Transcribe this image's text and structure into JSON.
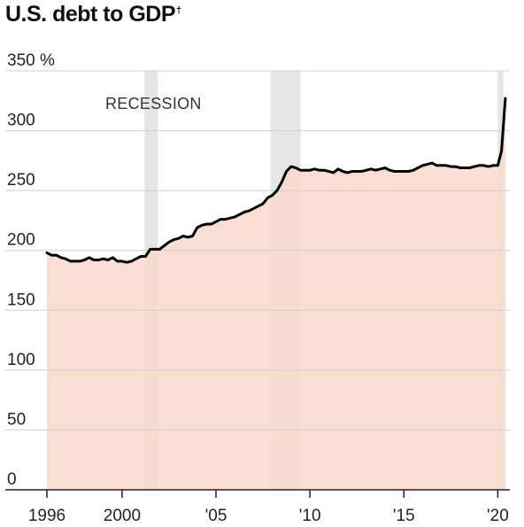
{
  "title": "U.S. debt to GDP",
  "title_mark": "†",
  "chart_data": {
    "type": "area",
    "title": "U.S. debt to GDP",
    "xlabel": "",
    "ylabel": "",
    "xlim": [
      1996,
      2020.5
    ],
    "ylim": [
      0,
      350
    ],
    "y_ticks": [
      0,
      50,
      100,
      150,
      200,
      250,
      300,
      350
    ],
    "y_tick_labels": [
      "0",
      "50",
      "100",
      "150",
      "200",
      "250",
      "300",
      "350 %"
    ],
    "x_ticks": [
      1996,
      2000,
      2005,
      2010,
      2015,
      2020
    ],
    "x_tick_labels": [
      "1996",
      "2000",
      "'05",
      "'10",
      "'15",
      "'20"
    ],
    "grid": true,
    "line_color": "#000000",
    "fill_color": "#f9d8cd",
    "recession_color": "#dcdcdc",
    "recession_label": "RECESSION",
    "recessions": [
      [
        2001.2,
        2001.9
      ],
      [
        2007.9,
        2009.5
      ],
      [
        2020.0,
        2020.3
      ]
    ],
    "series": [
      {
        "x": [
          1996.0,
          1996.25,
          1996.5,
          1996.75,
          1997.0,
          1997.25,
          1997.5,
          1997.75,
          1998.0,
          1998.25,
          1998.5,
          1998.75,
          1999.0,
          1999.25,
          1999.5,
          1999.75,
          2000.0,
          2000.25,
          2000.5,
          2000.75,
          2001.0,
          2001.25,
          2001.5,
          2001.75,
          2002.0,
          2002.25,
          2002.5,
          2002.75,
          2003.0,
          2003.25,
          2003.5,
          2003.75,
          2004.0,
          2004.25,
          2004.5,
          2004.75,
          2005.0,
          2005.25,
          2005.5,
          2005.75,
          2006.0,
          2006.25,
          2006.5,
          2006.75,
          2007.0,
          2007.25,
          2007.5,
          2007.75,
          2008.0,
          2008.25,
          2008.5,
          2008.75,
          2009.0,
          2009.25,
          2009.5,
          2009.75,
          2010.0,
          2010.25,
          2010.5,
          2010.75,
          2011.0,
          2011.25,
          2011.5,
          2011.75,
          2012.0,
          2012.25,
          2012.5,
          2012.75,
          2013.0,
          2013.25,
          2013.5,
          2013.75,
          2014.0,
          2014.25,
          2014.5,
          2014.75,
          2015.0,
          2015.25,
          2015.5,
          2015.75,
          2016.0,
          2016.25,
          2016.5,
          2016.75,
          2017.0,
          2017.25,
          2017.5,
          2017.75,
          2018.0,
          2018.25,
          2018.5,
          2018.75,
          2019.0,
          2019.25,
          2019.5,
          2019.75,
          2020.0,
          2020.2,
          2020.4
        ],
        "values": [
          198,
          196,
          196,
          194,
          193,
          191,
          191,
          191,
          192,
          194,
          192,
          192,
          193,
          192,
          194,
          191,
          191,
          190,
          191,
          193,
          195,
          195,
          201,
          201,
          201,
          204,
          207,
          209,
          210,
          212,
          211,
          212,
          219,
          221,
          222,
          222,
          224,
          226,
          226,
          227,
          228,
          230,
          232,
          233,
          235,
          237,
          239,
          244,
          246,
          250,
          257,
          266,
          270,
          269,
          267,
          267,
          267,
          268,
          267,
          267,
          266,
          265,
          268,
          266,
          265,
          266,
          266,
          266,
          267,
          268,
          267,
          268,
          269,
          267,
          266,
          266,
          266,
          266,
          267,
          269,
          271,
          272,
          273,
          271,
          271,
          271,
          270,
          270,
          269,
          269,
          269,
          270,
          271,
          271,
          270,
          271,
          271,
          283,
          327
        ]
      }
    ]
  }
}
